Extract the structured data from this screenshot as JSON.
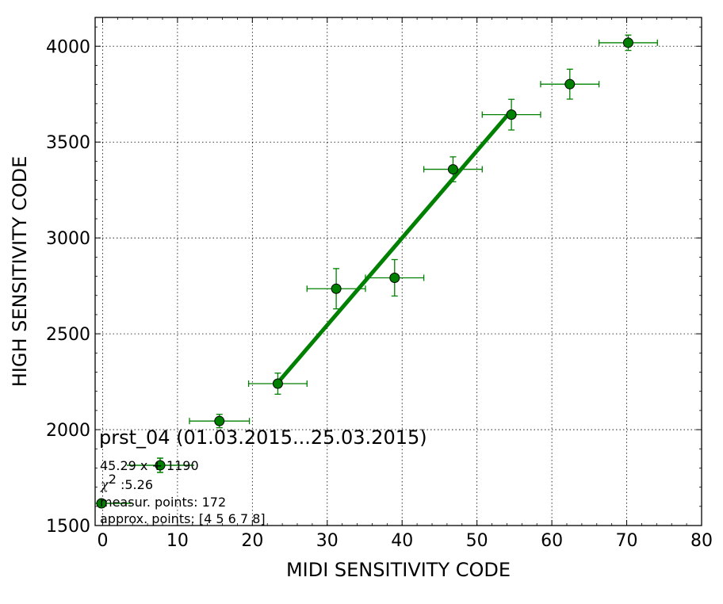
{
  "chart_data": {
    "type": "scatter",
    "xlabel": "MIDI SENSITIVITY CODE",
    "ylabel": "HIGH SENSITIVITY CODE",
    "xlim": [
      -1,
      80
    ],
    "ylim": [
      1500,
      4150
    ],
    "xticks": [
      0,
      10,
      20,
      30,
      40,
      50,
      60,
      70,
      80
    ],
    "yticks": [
      1500,
      2000,
      2500,
      3000,
      3500,
      4000
    ],
    "grid": true,
    "colors": {
      "series": "#008000",
      "fit": "#008000",
      "marker_edge": "#000000"
    },
    "series": [
      {
        "points": [
          {
            "x": 15.6,
            "y": 2045,
            "xerr": 4.0,
            "yerr": 35
          },
          {
            "x": 23.4,
            "y": 2240,
            "xerr": 3.9,
            "yerr": 55
          },
          {
            "x": 31.2,
            "y": 2735,
            "xerr": 3.9,
            "yerr": 105
          },
          {
            "x": 39.0,
            "y": 2792,
            "xerr": 3.9,
            "yerr": 95
          },
          {
            "x": 46.8,
            "y": 3358,
            "xerr": 3.9,
            "yerr": 65
          },
          {
            "x": 54.6,
            "y": 3643,
            "xerr": 3.9,
            "yerr": 80
          },
          {
            "x": 62.4,
            "y": 3802,
            "xerr": 3.9,
            "yerr": 78
          },
          {
            "x": 70.2,
            "y": 4018,
            "xerr": 3.9,
            "yerr": 40
          }
        ]
      }
    ],
    "fit_line": {
      "x": [
        23.4,
        54.6
      ],
      "y": [
        2245,
        3664
      ]
    },
    "annotations": {
      "title": "prst_04 (01.03.2015...25.03.2015)",
      "fit_text": "45.29 x + 1190",
      "chi_label": "χ",
      "chi_sup": "2",
      "chi_value": " :5.26",
      "measur_points": "measur. points: 172",
      "approx_points": "approx. points: [4 5 6 7 8]"
    }
  }
}
